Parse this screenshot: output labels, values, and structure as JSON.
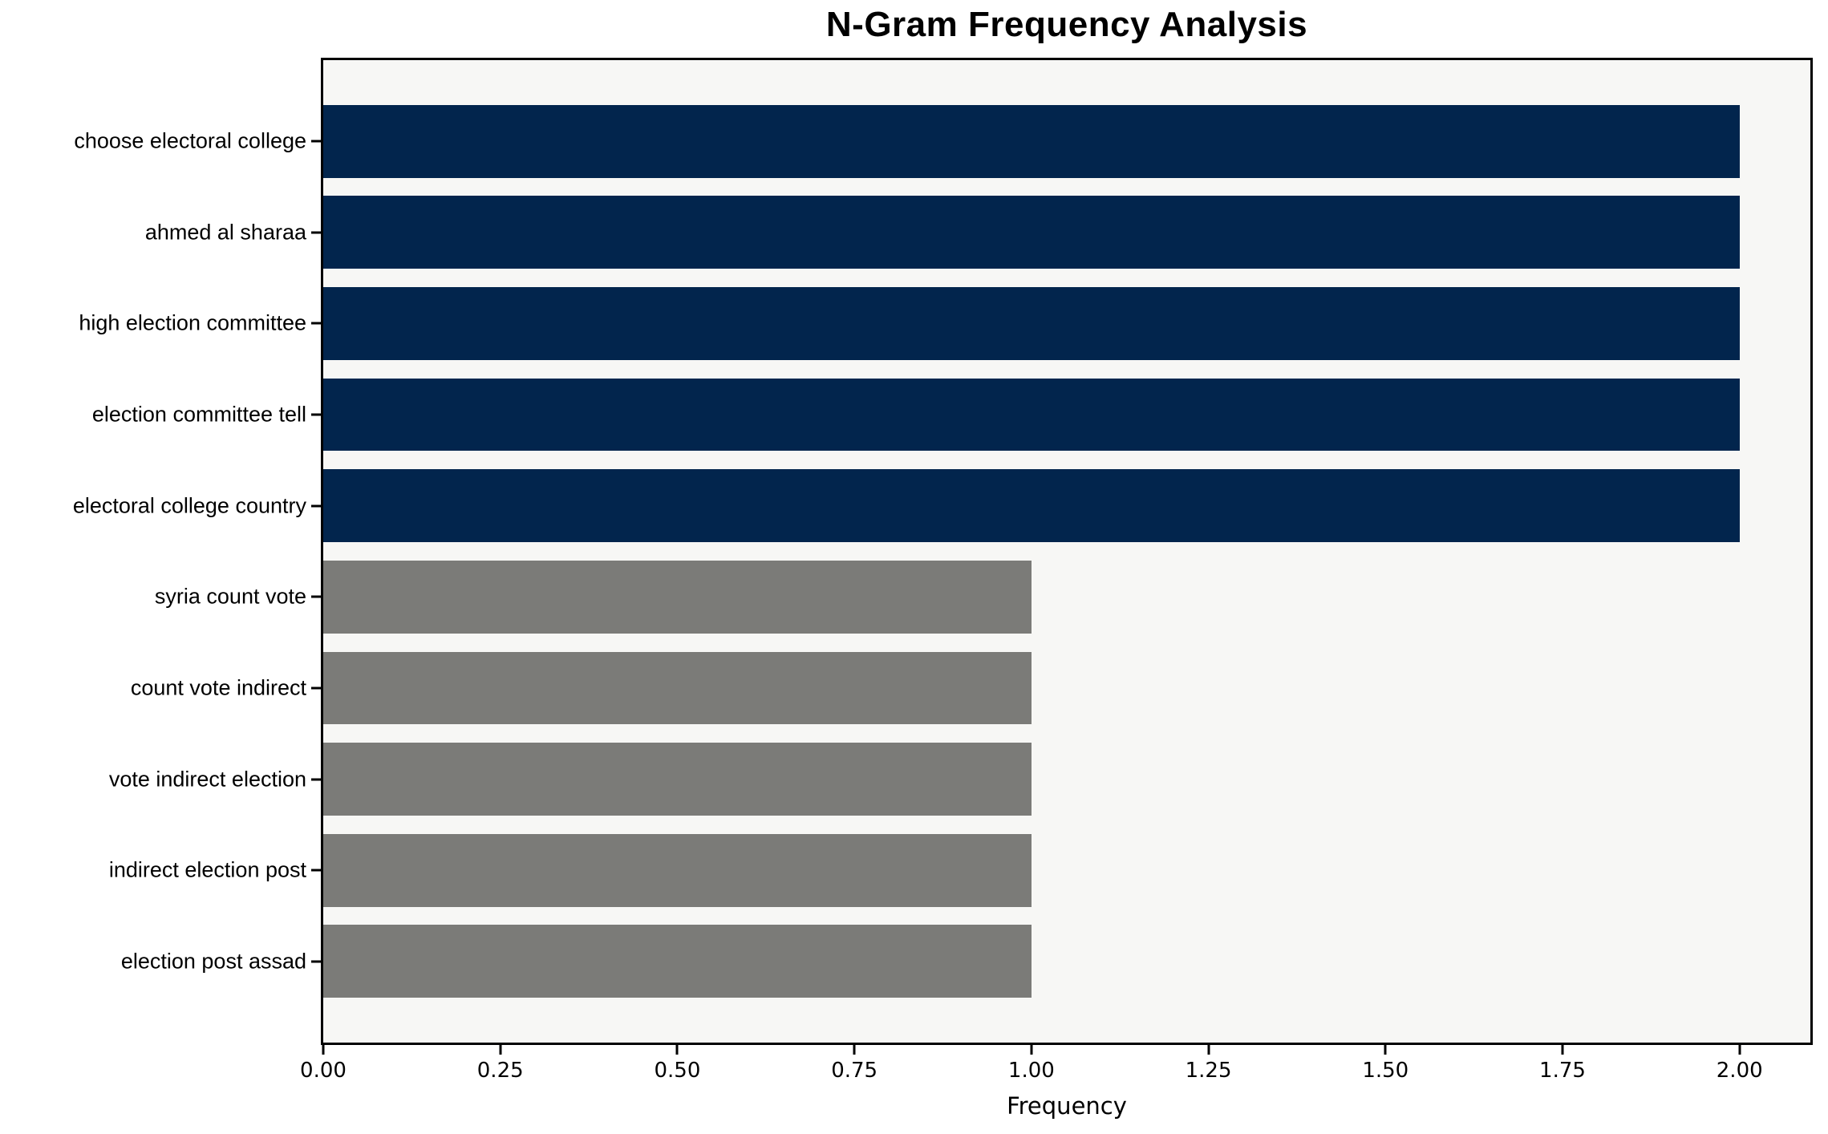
{
  "chart_data": {
    "type": "bar",
    "orientation": "horizontal",
    "title": "N-Gram Frequency Analysis",
    "xlabel": "Frequency",
    "ylabel": "",
    "categories": [
      "choose electoral college",
      "ahmed al sharaa",
      "high election committee",
      "election committee tell",
      "electoral college country",
      "syria count vote",
      "count vote indirect",
      "vote indirect election",
      "indirect election post",
      "election post assad"
    ],
    "values": [
      2,
      2,
      2,
      2,
      2,
      1,
      1,
      1,
      1,
      1
    ],
    "bar_colors": [
      "#02254d",
      "#02254d",
      "#02254d",
      "#02254d",
      "#02254d",
      "#7b7b78",
      "#7b7b78",
      "#7b7b78",
      "#7b7b78",
      "#7b7b78"
    ],
    "xlim": [
      0,
      2.1
    ],
    "x_tick_values": [
      0.0,
      0.25,
      0.5,
      0.75,
      1.0,
      1.25,
      1.5,
      1.75,
      2.0
    ],
    "x_tick_labels": [
      "0.00",
      "0.25",
      "0.50",
      "0.75",
      "1.00",
      "1.25",
      "1.50",
      "1.75",
      "2.00"
    ],
    "grid": false,
    "legend_position": "none",
    "bar_height_units": 0.8,
    "colors": {
      "figure_background": "#ffffff",
      "plot_background": "#f7f7f5",
      "spine": "#000000",
      "text": "#000000",
      "primary_bar": "#02254d",
      "secondary_bar": "#7b7b78"
    }
  }
}
